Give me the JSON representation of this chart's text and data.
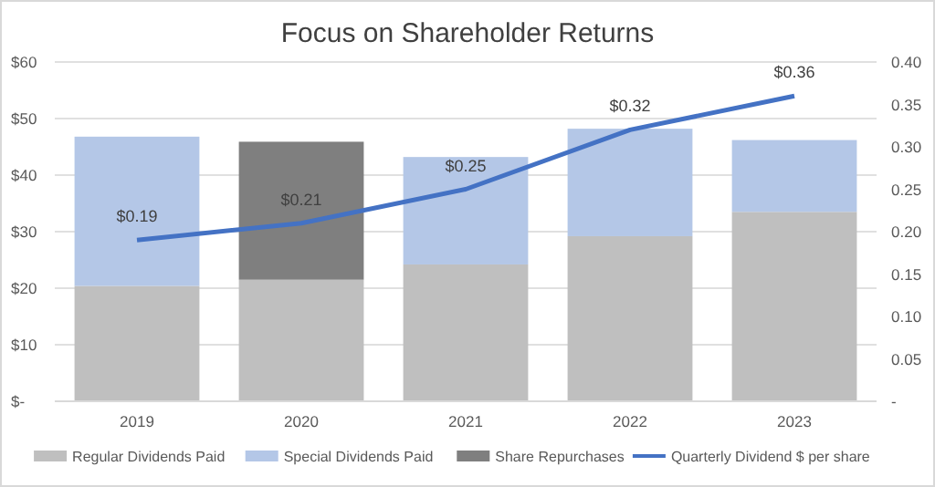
{
  "chart_data": {
    "type": "bar",
    "title": "Focus on Shareholder Returns",
    "categories": [
      "2019",
      "2020",
      "2021",
      "2022",
      "2023"
    ],
    "stacked": true,
    "grid": "y",
    "legend": "bottom",
    "marker": "none",
    "line_style": "solid",
    "ylim": [
      0,
      60
    ],
    "yticks": [
      {
        "value": 0,
        "label": "$-"
      },
      {
        "value": 10,
        "label": "$10"
      },
      {
        "value": 20,
        "label": "$20"
      },
      {
        "value": 30,
        "label": "$30"
      },
      {
        "value": 40,
        "label": "$40"
      },
      {
        "value": 50,
        "label": "$50"
      },
      {
        "value": 60,
        "label": "$60"
      }
    ],
    "y2lim": [
      0,
      0.4
    ],
    "y2ticks": [
      {
        "value": 0,
        "label": "-"
      },
      {
        "value": 0.05,
        "label": "0.05"
      },
      {
        "value": 0.1,
        "label": "0.10"
      },
      {
        "value": 0.15,
        "label": "0.15"
      },
      {
        "value": 0.2,
        "label": "0.20"
      },
      {
        "value": 0.25,
        "label": "0.25"
      },
      {
        "value": 0.3,
        "label": "0.30"
      },
      {
        "value": 0.35,
        "label": "0.35"
      },
      {
        "value": 0.4,
        "label": "0.40"
      }
    ],
    "series": [
      {
        "name": "Regular Dividends Paid",
        "color": "#bfbfbf",
        "values": [
          20.4,
          21.5,
          24.2,
          29.2,
          33.5
        ]
      },
      {
        "name": "Special Dividends Paid",
        "color": "#b4c7e7",
        "values": [
          26.4,
          null,
          19.0,
          19.0,
          12.7
        ]
      },
      {
        "name": "Share Repurchases",
        "color": "#7f7f7f",
        "values": [
          null,
          24.4,
          null,
          null,
          null
        ]
      },
      {
        "name": "Quarterly Dividend $ per share",
        "type": "line",
        "axis": "y2",
        "color": "#4472c4",
        "values": [
          0.19,
          0.21,
          0.25,
          0.32,
          0.36
        ],
        "value_labels": [
          "$0.19",
          "$0.21",
          "$0.25",
          "$0.32",
          "$0.36"
        ]
      }
    ]
  }
}
